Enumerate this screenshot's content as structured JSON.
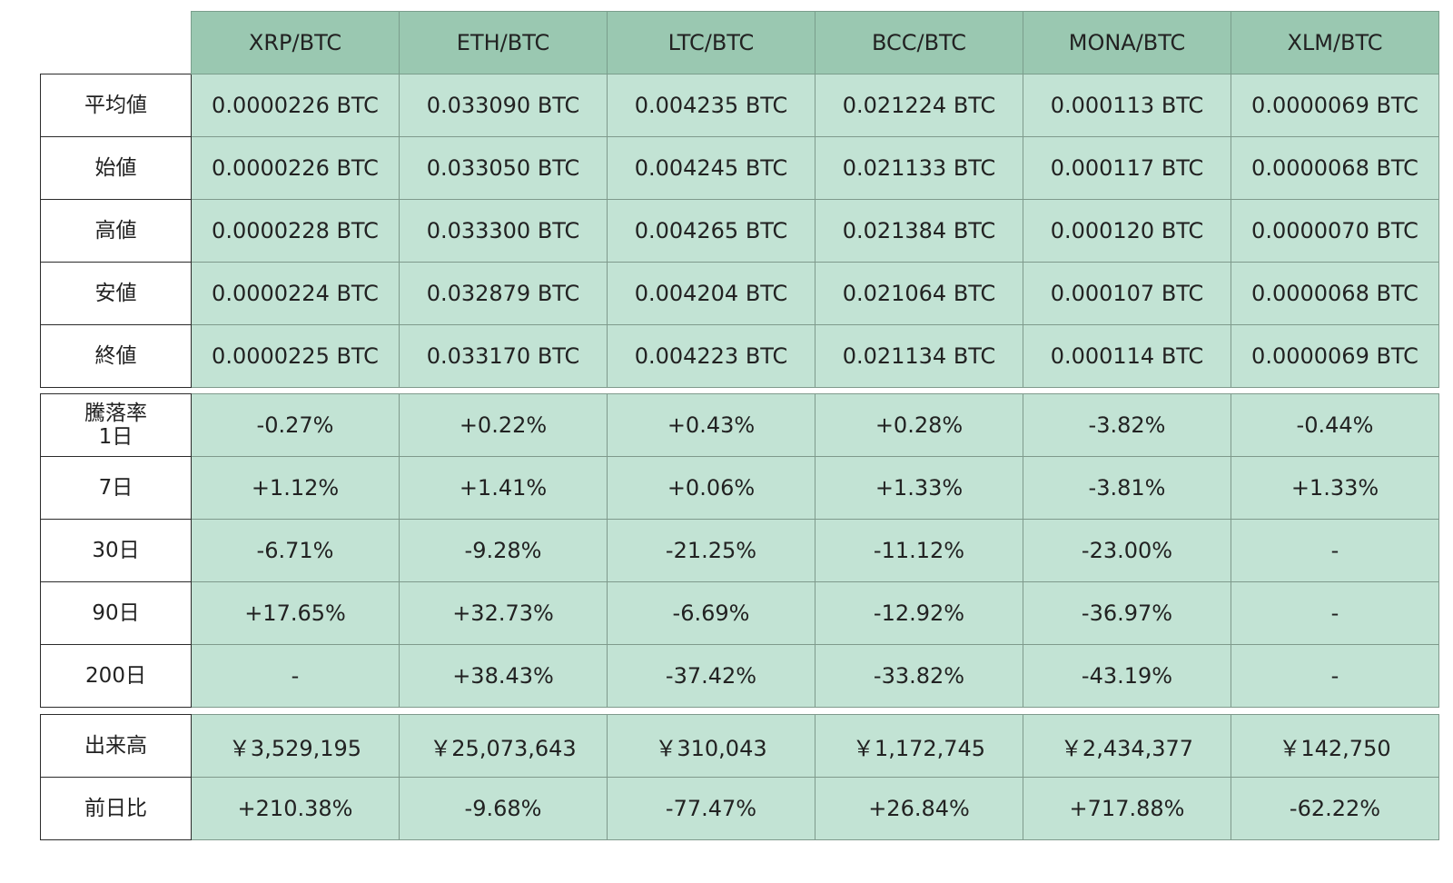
{
  "chart_data": {
    "type": "table",
    "columns": [
      "XRP/BTC",
      "ETH/BTC",
      "LTC/BTC",
      "BCC/BTC",
      "MONA/BTC",
      "XLM/BTC"
    ],
    "price_rows": [
      {
        "label": "平均値",
        "values": [
          "0.0000226 BTC",
          "0.033090 BTC",
          "0.004235 BTC",
          "0.021224 BTC",
          "0.000113 BTC",
          "0.0000069 BTC"
        ]
      },
      {
        "label": "始値",
        "values": [
          "0.0000226 BTC",
          "0.033050 BTC",
          "0.004245 BTC",
          "0.021133 BTC",
          "0.000117 BTC",
          "0.0000068 BTC"
        ]
      },
      {
        "label": "高値",
        "values": [
          "0.0000228 BTC",
          "0.033300 BTC",
          "0.004265 BTC",
          "0.021384 BTC",
          "0.000120 BTC",
          "0.0000070 BTC"
        ]
      },
      {
        "label": "安値",
        "values": [
          "0.0000224 BTC",
          "0.032879 BTC",
          "0.004204 BTC",
          "0.021064 BTC",
          "0.000107 BTC",
          "0.0000068 BTC"
        ]
      },
      {
        "label": "終値",
        "values": [
          "0.0000225 BTC",
          "0.033170 BTC",
          "0.004223 BTC",
          "0.021134 BTC",
          "0.000114 BTC",
          "0.0000069 BTC"
        ]
      }
    ],
    "change_rows": [
      {
        "label_line1": "騰落率",
        "label": "1日",
        "values": [
          "-0.27%",
          "+0.22%",
          "+0.43%",
          "+0.28%",
          "-3.82%",
          "-0.44%"
        ]
      },
      {
        "label": "7日",
        "values": [
          "+1.12%",
          "+1.41%",
          "+0.06%",
          "+1.33%",
          "-3.81%",
          "+1.33%"
        ]
      },
      {
        "label": "30日",
        "values": [
          "-6.71%",
          "-9.28%",
          "-21.25%",
          "-11.12%",
          "-23.00%",
          "-"
        ]
      },
      {
        "label": "90日",
        "values": [
          "+17.65%",
          "+32.73%",
          "-6.69%",
          "-12.92%",
          "-36.97%",
          "-"
        ]
      },
      {
        "label": "200日",
        "values": [
          "-",
          "+38.43%",
          "-37.42%",
          "-33.82%",
          "-43.19%",
          "-"
        ]
      }
    ],
    "volume_rows": [
      {
        "label": "出来高",
        "values": [
          "￥3,529,195",
          "￥25,073,643",
          "￥310,043",
          "￥1,172,745",
          "￥2,434,377",
          "￥142,750"
        ]
      },
      {
        "label": "前日比",
        "values": [
          "+210.38%",
          "-9.68%",
          "-77.47%",
          "+26.84%",
          "+717.88%",
          "-62.22%"
        ]
      }
    ]
  },
  "colors": {
    "header_bg": "#9ac8b1",
    "cell_bg": "#c2e3d4",
    "label_bg": "#ffffff",
    "border": "#2b2b2b"
  }
}
